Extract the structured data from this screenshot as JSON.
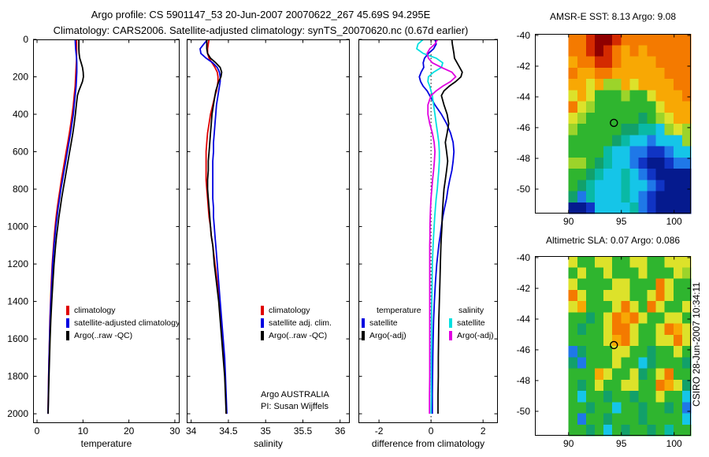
{
  "title": {
    "line1": "Argo profile: CS 5901147_53 20-Jun-2007 20070622_267 45.69S 94.295E",
    "line2": "Climatology: CARS2006. Satellite-adjusted climatology: synTS_20070620.nc (0.67d earlier)"
  },
  "watermark": "CSIRO 28-Jun-2007 10:34:11",
  "annotation": {
    "line1": "Argo AUSTRALIA",
    "line2": "PI: Susan Wijffels"
  },
  "legends": {
    "temperature": {
      "items": [
        {
          "label": "climatology",
          "color": "#e00000"
        },
        {
          "label": "satellite-adjusted climatology",
          "color": "#0000e0"
        },
        {
          "label": "Argo(..raw -QC)",
          "color": "#000000"
        }
      ]
    },
    "salinity": {
      "items": [
        {
          "label": "climatology",
          "color": "#e00000"
        },
        {
          "label": "satellite adj. clim.",
          "color": "#0000e0"
        },
        {
          "label": "Argo(..raw -QC)",
          "color": "#000000"
        }
      ]
    },
    "difference": {
      "col1_header": "temperature",
      "col2_header": "salinity",
      "col1": [
        {
          "label": "satellite",
          "color": "#0000e0"
        },
        {
          "label": "Argo(-adj)",
          "color": "#000000"
        }
      ],
      "col2": [
        {
          "label": "satellite",
          "color": "#00e0e0"
        },
        {
          "label": "Argo(-adj)",
          "color": "#e000e0"
        }
      ]
    }
  },
  "map_palette": {
    "K": "#8f0000",
    "R": "#d42a00",
    "O": "#f47a00",
    "A": "#f8a804",
    "Y": "#dde22a",
    "L": "#9cd42a",
    "G": "#2fb52f",
    "E": "#12a06a",
    "T": "#09b9a5",
    "C": "#15c5e8",
    "B": "#1f78e8",
    "D": "#1034c4",
    "N": "#051a8e"
  },
  "chart_data": [
    {
      "id": "temperature-profile",
      "type": "line",
      "xlabel": "temperature",
      "xlim": [
        -0.86,
        31.04
      ],
      "xticks": [
        0,
        10,
        20,
        30
      ],
      "ylim": [
        0,
        2050
      ],
      "yticks": [
        0,
        200,
        400,
        600,
        800,
        1000,
        1200,
        1400,
        1600,
        1800,
        2000
      ],
      "ytick_labels": true,
      "depths": [
        0,
        25,
        50,
        75,
        100,
        125,
        150,
        175,
        200,
        225,
        250,
        275,
        300,
        350,
        400,
        450,
        500,
        550,
        600,
        650,
        700,
        750,
        800,
        850,
        900,
        950,
        1000,
        1050,
        1100,
        1200,
        1300,
        1400,
        1500,
        1600,
        1700,
        1800,
        1900,
        2000
      ],
      "series": [
        {
          "name": "climatology",
          "color": "#e00000",
          "values": [
            8.6,
            8.6,
            8.6,
            8.6,
            8.6,
            8.55,
            8.5,
            8.45,
            8.4,
            8.35,
            8.3,
            8.2,
            8.1,
            7.9,
            7.65,
            7.35,
            7.05,
            6.7,
            6.35,
            6.0,
            5.65,
            5.3,
            5.0,
            4.7,
            4.4,
            4.15,
            3.95,
            3.75,
            3.6,
            3.3,
            3.1,
            2.95,
            2.8,
            2.7,
            2.6,
            2.52,
            2.45,
            2.4
          ]
        },
        {
          "name": "satellite-adjusted climatology",
          "color": "#0000e0",
          "values": [
            8.3,
            8.35,
            8.4,
            8.5,
            8.6,
            8.65,
            8.65,
            8.65,
            8.6,
            8.55,
            8.5,
            8.4,
            8.3,
            8.1,
            7.9,
            7.6,
            7.3,
            6.95,
            6.6,
            6.25,
            5.9,
            5.55,
            5.2,
            4.9,
            4.6,
            4.35,
            4.1,
            3.9,
            3.7,
            3.4,
            3.2,
            3.0,
            2.85,
            2.73,
            2.62,
            2.53,
            2.46,
            2.4
          ]
        },
        {
          "name": "Argo(..raw -QC)",
          "color": "#000000",
          "values": [
            9.1,
            9.1,
            9.1,
            9.15,
            9.3,
            9.6,
            9.9,
            10.05,
            10.1,
            9.9,
            9.5,
            9.1,
            8.8,
            8.55,
            8.35,
            8.1,
            7.8,
            7.45,
            7.1,
            6.75,
            6.4,
            6.05,
            5.7,
            5.35,
            5.05,
            4.75,
            4.5,
            4.25,
            4.05,
            3.7,
            3.45,
            3.2,
            3.0,
            2.85,
            2.72,
            2.6,
            2.5,
            2.42
          ]
        }
      ]
    },
    {
      "id": "salinity-profile",
      "type": "line",
      "xlabel": "salinity",
      "xlim": [
        33.94,
        36.13
      ],
      "xticks": [
        34,
        34.5,
        35,
        35.5,
        36
      ],
      "ylim": [
        0,
        2050
      ],
      "yticks": [
        0,
        200,
        400,
        600,
        800,
        1000,
        1200,
        1400,
        1600,
        1800,
        2000
      ],
      "ytick_labels": false,
      "depths": [
        0,
        25,
        50,
        75,
        100,
        125,
        150,
        175,
        200,
        225,
        250,
        275,
        300,
        350,
        400,
        450,
        500,
        550,
        600,
        650,
        700,
        750,
        800,
        850,
        900,
        950,
        1000,
        1050,
        1100,
        1200,
        1300,
        1400,
        1500,
        1600,
        1700,
        1800,
        1900,
        2000
      ],
      "series": [
        {
          "name": "climatology",
          "color": "#e00000",
          "values": [
            34.24,
            34.23,
            34.22,
            34.22,
            34.24,
            34.28,
            34.32,
            34.35,
            34.36,
            34.36,
            34.35,
            34.34,
            34.32,
            34.29,
            34.26,
            34.24,
            34.22,
            34.21,
            34.2,
            34.2,
            34.2,
            34.2,
            34.21,
            34.22,
            34.23,
            34.24,
            34.26,
            34.27,
            34.29,
            34.32,
            34.35,
            34.38,
            34.4,
            34.42,
            34.44,
            34.455,
            34.465,
            34.47
          ]
        },
        {
          "name": "satellite adj. clim.",
          "color": "#0000e0",
          "values": [
            34.22,
            34.17,
            34.12,
            34.13,
            34.2,
            34.29,
            34.35,
            34.38,
            34.39,
            34.39,
            34.38,
            34.37,
            34.36,
            34.34,
            34.33,
            34.32,
            34.31,
            34.3,
            34.3,
            34.29,
            34.29,
            34.29,
            34.29,
            34.29,
            34.3,
            34.3,
            34.31,
            34.32,
            34.33,
            34.35,
            34.37,
            34.39,
            34.41,
            34.43,
            34.45,
            34.46,
            34.47,
            34.48
          ]
        },
        {
          "name": "Argo(..raw -QC)",
          "color": "#000000",
          "values": [
            34.21,
            34.21,
            34.21,
            34.22,
            34.26,
            34.33,
            34.39,
            34.41,
            34.4,
            34.37,
            34.35,
            34.33,
            34.32,
            34.3,
            34.28,
            34.27,
            34.26,
            34.25,
            34.24,
            34.23,
            34.23,
            34.22,
            34.22,
            34.23,
            34.24,
            34.25,
            34.26,
            34.27,
            34.29,
            34.31,
            34.34,
            34.37,
            34.39,
            34.41,
            34.43,
            34.45,
            34.46,
            34.47
          ]
        }
      ]
    },
    {
      "id": "difference-profile",
      "type": "line",
      "xlabel": "difference from climatology",
      "xlim": [
        -2.79,
        2.57
      ],
      "xticks": [
        -2,
        0,
        2
      ],
      "ylim": [
        0,
        2050
      ],
      "yticks": [
        0,
        200,
        400,
        600,
        800,
        1000,
        1200,
        1400,
        1600,
        1800,
        2000
      ],
      "ytick_labels": false,
      "zero_line": true,
      "depths": [
        0,
        25,
        50,
        75,
        100,
        125,
        150,
        175,
        200,
        225,
        250,
        275,
        300,
        350,
        400,
        450,
        500,
        550,
        600,
        650,
        700,
        750,
        800,
        850,
        900,
        950,
        1000,
        1050,
        1100,
        1200,
        1300,
        1400,
        1500,
        1600,
        1700,
        1800,
        1900,
        2000
      ],
      "series": [
        {
          "name": "temperature satellite",
          "color": "#0000e0",
          "values": [
            0.15,
            0.2,
            0.1,
            -0.1,
            -0.25,
            -0.3,
            -0.28,
            -0.38,
            -0.45,
            -0.4,
            -0.3,
            -0.15,
            -0.05,
            0.15,
            0.4,
            0.6,
            0.75,
            0.85,
            0.88,
            0.85,
            0.8,
            0.72,
            0.65,
            0.6,
            0.52,
            0.45,
            0.4,
            0.35,
            0.3,
            0.22,
            0.17,
            0.13,
            0.1,
            0.08,
            0.07,
            0.06,
            0.05,
            0.05
          ]
        },
        {
          "name": "temperature Argo(-adj)",
          "color": "#000000",
          "values": [
            0.8,
            0.82,
            0.85,
            0.88,
            0.9,
            1.0,
            1.1,
            1.2,
            1.15,
            0.95,
            0.7,
            0.5,
            0.4,
            0.5,
            0.62,
            0.68,
            0.62,
            0.55,
            0.6,
            0.64,
            0.6,
            0.55,
            0.5,
            0.47,
            0.45,
            0.43,
            0.42,
            0.4,
            0.38,
            0.36,
            0.34,
            0.32,
            0.3,
            0.29,
            0.28,
            0.28,
            0.27,
            0.27
          ]
        },
        {
          "name": "salinity satellite",
          "color": "#00e0e0",
          "values": [
            -0.3,
            -0.5,
            -0.55,
            -0.3,
            0.2,
            0.45,
            0.4,
            0.1,
            -0.1,
            -0.12,
            -0.05,
            0,
            0.05,
            0.1,
            0.15,
            0.2,
            0.25,
            0.3,
            0.32,
            0.32,
            0.3,
            0.27,
            0.24,
            0.2,
            0.17,
            0.14,
            0.12,
            0.1,
            0.08,
            0.05,
            0.04,
            0.03,
            0.02,
            0.02,
            0.01,
            0.01,
            0.01,
            0
          ]
        },
        {
          "name": "salinity Argo(-adj)",
          "color": "#e000e0",
          "values": [
            0.25,
            0.15,
            -0.05,
            -0.15,
            -0.1,
            0.05,
            0.4,
            0.8,
            0.95,
            0.75,
            0.45,
            0.2,
            0,
            -0.12,
            -0.12,
            -0.05,
            0.05,
            0.12,
            0.15,
            0.13,
            0.1,
            0.06,
            0.03,
            0,
            -0.02,
            -0.03,
            -0.04,
            -0.04,
            -0.05,
            -0.05,
            -0.05,
            -0.05,
            -0.05,
            -0.05,
            -0.05,
            -0.05,
            -0.06,
            -0.06
          ]
        }
      ]
    },
    {
      "id": "sst-map",
      "type": "heatmap",
      "title": "AMSR-E SST: 8.13 Argo: 9.08",
      "xlim": [
        86.81,
        101.59
      ],
      "xticks": [
        90,
        95,
        100
      ],
      "ylim": [
        -39.9,
        -51.59
      ],
      "yticks": [
        -40,
        -42,
        -44,
        -46,
        -48,
        -50
      ],
      "data_x0": 90,
      "marker": {
        "lon": 94.295,
        "lat": -45.69
      },
      "grid": [
        "OORKKROOOOOOOO",
        "OORKROAOAOOOOO",
        "AOORROAAAAOOOO",
        "OAAOOAAAAAAOOO",
        "AAYALLAYAAAAOO",
        "YAYGGGLGGYAAAO",
        "OYLGGGGGGGYAAA",
        "YLGGGGGGEGLYAA",
        "LGGGGGEETTCLYL",
        "GGGGGETCCBCCCL",
        "GGGGTCCBBDDBCC",
        "LLGETCCBDNNDBB",
        "GGETCCTCBDNNNN",
        "GETCCCTCCBDNNN",
        "EBTCCCTCBDNNNN",
        "NNDCCCCTBDNNNN"
      ]
    },
    {
      "id": "sla-map",
      "type": "heatmap",
      "title": "Altimetric SLA: 0.07 Argo: 0.086",
      "xlim": [
        86.81,
        101.59
      ],
      "xticks": [
        90,
        95,
        100
      ],
      "ylim": [
        -39.9,
        -51.59
      ],
      "yticks": [
        -40,
        -42,
        -44,
        -46,
        -48,
        -50
      ],
      "data_x0": 90,
      "marker": {
        "lon": 94.295,
        "lat": -45.69
      },
      "grid": [
        "YGGYYGGYYGGYYY",
        "GYGGYGGGYGGGYL",
        "YGGGGYYGGGOYGG",
        "OYGGYYYGGYOYGG",
        "YAGGGYOYGOYGGY",
        "GGEGYOAOYGGYYG",
        "GEGGYOOYGGYOAY",
        "GGGGYAOYGGYYOY",
        "BEGGGYYGGEGGYG",
        "EBGGGYGGCEGGGE",
        "GGGAYGGYEGYOGG",
        "GEGYGGYYGGOAYE",
        "GCGGEGGEGGYGGC",
        "GGEGGCGGEGGEGB",
        "GBGGEGGGEGGGGC",
        "GGEGCGEGGEGTGG"
      ]
    }
  ]
}
